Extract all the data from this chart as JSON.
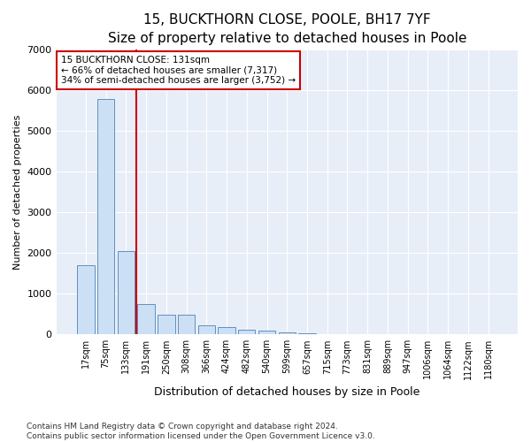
{
  "title1": "15, BUCKTHORN CLOSE, POOLE, BH17 7YF",
  "title2": "Size of property relative to detached houses in Poole",
  "xlabel": "Distribution of detached houses by size in Poole",
  "ylabel": "Number of detached properties",
  "footnote1": "Contains HM Land Registry data © Crown copyright and database right 2024.",
  "footnote2": "Contains public sector information licensed under the Open Government Licence v3.0.",
  "annotation_line1": "15 BUCKTHORN CLOSE: 131sqm",
  "annotation_line2": "← 66% of detached houses are smaller (7,317)",
  "annotation_line3": "34% of semi-detached houses are larger (3,752) →",
  "bar_color": "#cce0f5",
  "bar_edge_color": "#6090c0",
  "ref_line_color": "#cc0000",
  "background_color": "#e8eef8",
  "categories": [
    "17sqm",
    "75sqm",
    "133sqm",
    "191sqm",
    "250sqm",
    "308sqm",
    "366sqm",
    "424sqm",
    "482sqm",
    "540sqm",
    "599sqm",
    "657sqm",
    "715sqm",
    "773sqm",
    "831sqm",
    "889sqm",
    "947sqm",
    "1006sqm",
    "1064sqm",
    "1122sqm",
    "1180sqm"
  ],
  "values": [
    1700,
    5800,
    2050,
    750,
    480,
    480,
    220,
    170,
    120,
    90,
    60,
    30,
    15,
    5,
    2,
    1,
    1,
    0,
    0,
    0,
    0
  ],
  "ref_line_x": 2.5,
  "ylim": [
    0,
    7000
  ],
  "yticks": [
    0,
    1000,
    2000,
    3000,
    4000,
    5000,
    6000,
    7000
  ],
  "title1_fontsize": 11,
  "title2_fontsize": 10,
  "ylabel_fontsize": 8,
  "xlabel_fontsize": 9,
  "tick_fontsize": 7,
  "footnote_fontsize": 6.5
}
